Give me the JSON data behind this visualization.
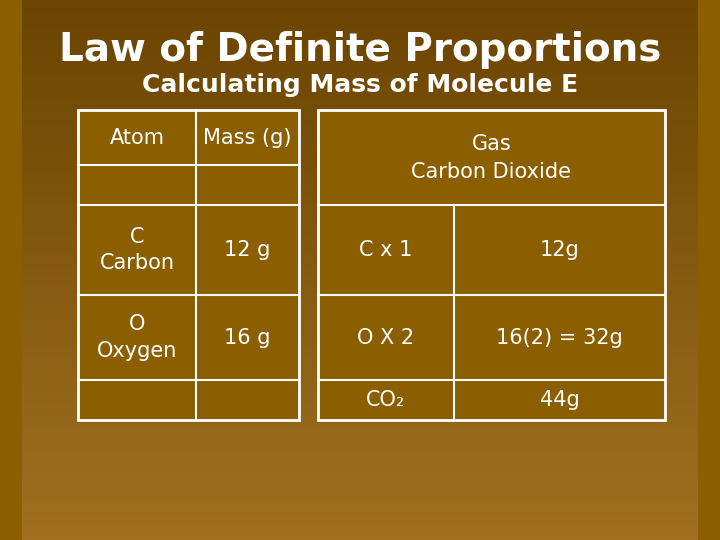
{
  "title": "Law of Definite Proportions",
  "subtitle": "Calculating Mass of Molecule E",
  "bg_color": "#8B5E00",
  "bg_gradient_top": "#6B4400",
  "bg_gradient_bottom": "#A07020",
  "table_border_color": "#FFFFFF",
  "table_fill_color": "#8B5E00",
  "text_color": "#FFFFFF",
  "left_table": {
    "headers": [
      "Atom",
      "Mass (g)"
    ],
    "rows": [
      [
        "",
        ""
      ],
      [
        "C\nCarbon",
        "12 g"
      ],
      [
        "O\nOxygen",
        "16 g"
      ],
      [
        "",
        ""
      ]
    ]
  },
  "right_table": {
    "header": "Gas\nCarbon Dioxide",
    "rows": [
      [
        "C x 1",
        "12g"
      ],
      [
        "O X 2",
        "16(2) = 32g"
      ],
      [
        "CO₂",
        "44g"
      ]
    ]
  }
}
